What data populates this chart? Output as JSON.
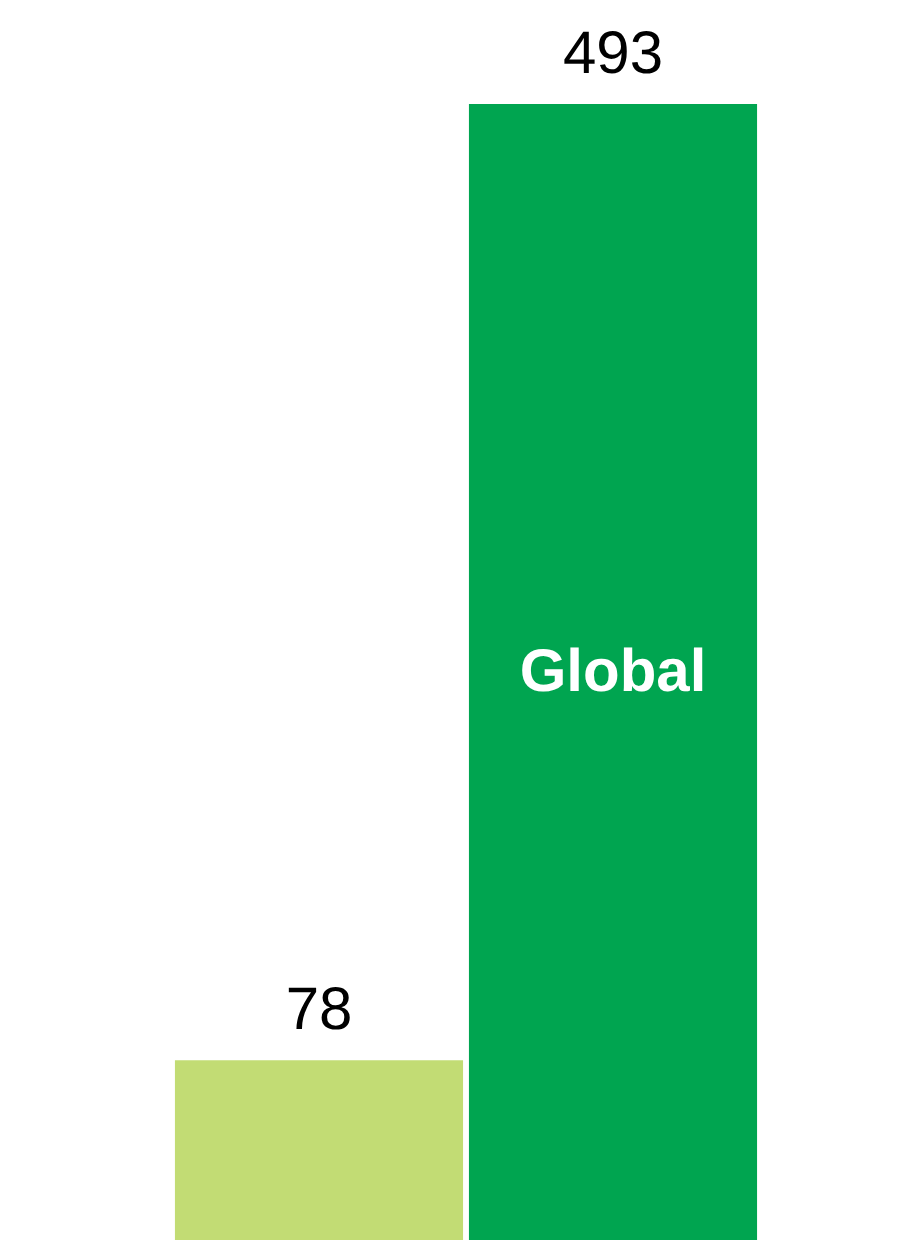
{
  "chart_data": {
    "type": "bar",
    "categories": [
      null,
      "Global"
    ],
    "values": [
      78,
      493
    ],
    "colors": [
      "#c2dc74",
      "#00a550"
    ],
    "data_labels": true
  }
}
